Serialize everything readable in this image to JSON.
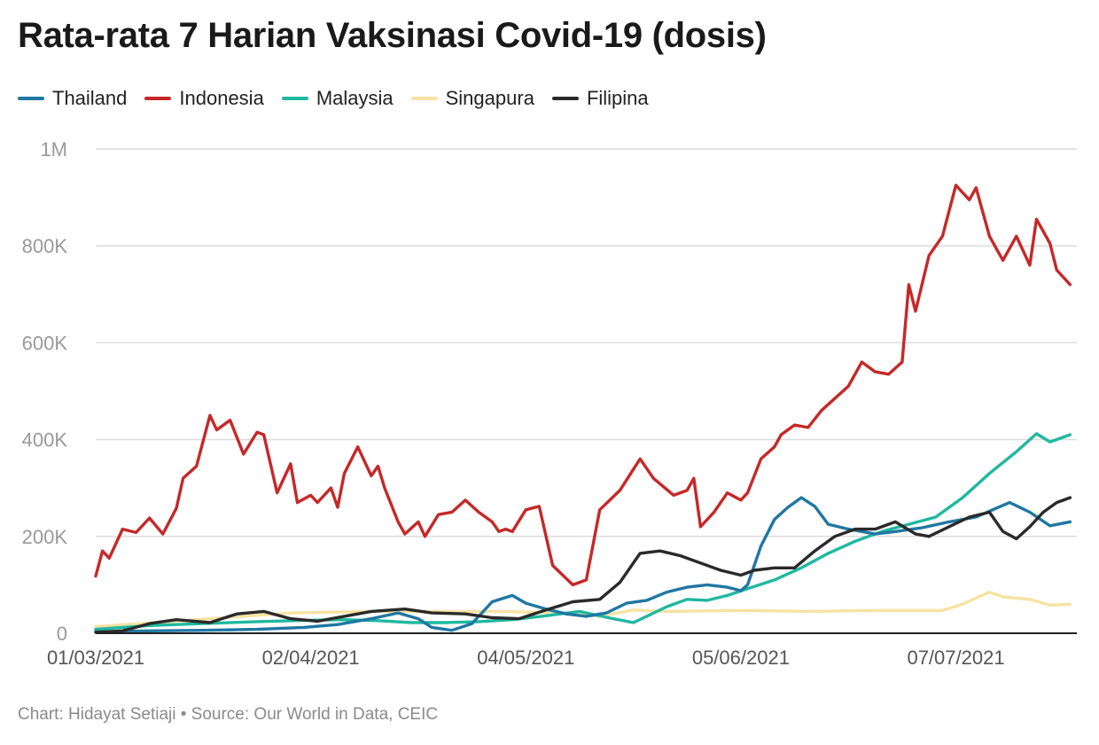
{
  "header": {
    "title": "Rata-rata 7 Harian Vaksinasi Covid-19 (dosis)"
  },
  "footer": {
    "credit": "Chart: Hidayat Setiaji • Source: Our World in Data, CEIC"
  },
  "colors": {
    "Thailand": "#1f77a3",
    "Indonesia": "#c62828",
    "Malaysia": "#1fb8a0",
    "Singapura": "#f6e3a3",
    "Filipina": "#2a2a2a",
    "grid": "#dcdcdc",
    "axis": "#222222",
    "tick_text": "#999999",
    "x_tick_text": "#555555"
  },
  "chart_data": {
    "type": "line",
    "title": "Rata-rata 7 Harian Vaksinasi Covid-19 (dosis)",
    "xlabel": "",
    "ylabel": "",
    "grid": true,
    "legend_position": "top-left",
    "ylim": [
      0,
      1050000
    ],
    "xlim": [
      "2021-03-01",
      "2021-07-25"
    ],
    "x_ticks": [
      {
        "date": "2021-03-01",
        "label": "01/03/2021"
      },
      {
        "date": "2021-04-02",
        "label": "02/04/2021"
      },
      {
        "date": "2021-05-04",
        "label": "04/05/2021"
      },
      {
        "date": "2021-06-05",
        "label": "05/06/2021"
      },
      {
        "date": "2021-07-07",
        "label": "07/07/2021"
      }
    ],
    "y_ticks": [
      {
        "value": 0,
        "label": "0"
      },
      {
        "value": 200000,
        "label": "200K"
      },
      {
        "value": 400000,
        "label": "400K"
      },
      {
        "value": 600000,
        "label": "600K"
      },
      {
        "value": 800000,
        "label": "800K"
      },
      {
        "value": 1000000,
        "label": "1M"
      }
    ],
    "series": [
      {
        "name": "Thailand",
        "x": [
          "2021-03-01",
          "2021-03-09",
          "2021-03-17",
          "2021-03-25",
          "2021-04-01",
          "2021-04-06",
          "2021-04-11",
          "2021-04-15",
          "2021-04-18",
          "2021-04-20",
          "2021-04-23",
          "2021-04-26",
          "2021-04-29",
          "2021-05-02",
          "2021-05-04",
          "2021-05-07",
          "2021-05-10",
          "2021-05-13",
          "2021-05-16",
          "2021-05-19",
          "2021-05-22",
          "2021-05-25",
          "2021-05-28",
          "2021-05-31",
          "2021-06-03",
          "2021-06-05",
          "2021-06-06",
          "2021-06-08",
          "2021-06-10",
          "2021-06-12",
          "2021-06-14",
          "2021-06-16",
          "2021-06-18",
          "2021-06-21",
          "2021-06-25",
          "2021-06-28",
          "2021-07-02",
          "2021-07-06",
          "2021-07-10",
          "2021-07-13",
          "2021-07-15",
          "2021-07-18",
          "2021-07-21",
          "2021-07-24"
        ],
        "y": [
          3000,
          5000,
          6000,
          8000,
          12000,
          18000,
          30000,
          42000,
          30000,
          12000,
          6000,
          20000,
          65000,
          78000,
          62000,
          50000,
          40000,
          35000,
          42000,
          62000,
          68000,
          85000,
          95000,
          100000,
          95000,
          88000,
          100000,
          180000,
          235000,
          260000,
          280000,
          262000,
          225000,
          215000,
          205000,
          210000,
          218000,
          230000,
          240000,
          258000,
          270000,
          250000,
          222000,
          230000
        ]
      },
      {
        "name": "Indonesia",
        "x": [
          "2021-03-01",
          "2021-03-02",
          "2021-03-03",
          "2021-03-05",
          "2021-03-07",
          "2021-03-09",
          "2021-03-11",
          "2021-03-13",
          "2021-03-14",
          "2021-03-16",
          "2021-03-18",
          "2021-03-19",
          "2021-03-21",
          "2021-03-23",
          "2021-03-25",
          "2021-03-26",
          "2021-03-28",
          "2021-03-30",
          "2021-03-31",
          "2021-04-02",
          "2021-04-03",
          "2021-04-05",
          "2021-04-06",
          "2021-04-07",
          "2021-04-09",
          "2021-04-10",
          "2021-04-11",
          "2021-04-12",
          "2021-04-13",
          "2021-04-15",
          "2021-04-16",
          "2021-04-18",
          "2021-04-19",
          "2021-04-21",
          "2021-04-23",
          "2021-04-25",
          "2021-04-27",
          "2021-04-29",
          "2021-04-30",
          "2021-05-01",
          "2021-05-02",
          "2021-05-04",
          "2021-05-06",
          "2021-05-08",
          "2021-05-11",
          "2021-05-13",
          "2021-05-15",
          "2021-05-18",
          "2021-05-21",
          "2021-05-23",
          "2021-05-26",
          "2021-05-28",
          "2021-05-29",
          "2021-05-30",
          "2021-06-01",
          "2021-06-03",
          "2021-06-05",
          "2021-06-06",
          "2021-06-08",
          "2021-06-10",
          "2021-06-11",
          "2021-06-13",
          "2021-06-15",
          "2021-06-17",
          "2021-06-19",
          "2021-06-21",
          "2021-06-23",
          "2021-06-25",
          "2021-06-27",
          "2021-06-29",
          "2021-06-30",
          "2021-07-01",
          "2021-07-03",
          "2021-07-05",
          "2021-07-07",
          "2021-07-09",
          "2021-07-10",
          "2021-07-12",
          "2021-07-14",
          "2021-07-16",
          "2021-07-18",
          "2021-07-19",
          "2021-07-21",
          "2021-07-22",
          "2021-07-24"
        ],
        "y": [
          118000,
          170000,
          155000,
          215000,
          208000,
          238000,
          205000,
          258000,
          320000,
          345000,
          450000,
          420000,
          440000,
          370000,
          415000,
          410000,
          290000,
          350000,
          270000,
          285000,
          270000,
          300000,
          260000,
          330000,
          385000,
          355000,
          325000,
          345000,
          300000,
          230000,
          205000,
          230000,
          200000,
          245000,
          250000,
          275000,
          250000,
          230000,
          210000,
          215000,
          210000,
          255000,
          262000,
          140000,
          100000,
          110000,
          255000,
          295000,
          360000,
          320000,
          285000,
          295000,
          320000,
          220000,
          250000,
          290000,
          275000,
          290000,
          360000,
          385000,
          410000,
          430000,
          425000,
          460000,
          485000,
          510000,
          560000,
          540000,
          535000,
          560000,
          720000,
          665000,
          780000,
          820000,
          925000,
          895000,
          920000,
          820000,
          770000,
          820000,
          760000,
          855000,
          805000,
          750000,
          720000
        ]
      },
      {
        "name": "Malaysia",
        "x": [
          "2021-03-01",
          "2021-03-09",
          "2021-03-17",
          "2021-03-25",
          "2021-04-02",
          "2021-04-07",
          "2021-04-12",
          "2021-04-17",
          "2021-04-22",
          "2021-04-27",
          "2021-05-02",
          "2021-05-07",
          "2021-05-12",
          "2021-05-17",
          "2021-05-20",
          "2021-05-22",
          "2021-05-25",
          "2021-05-28",
          "2021-05-31",
          "2021-06-03",
          "2021-06-06",
          "2021-06-10",
          "2021-06-14",
          "2021-06-18",
          "2021-06-22",
          "2021-06-26",
          "2021-06-30",
          "2021-07-04",
          "2021-07-08",
          "2021-07-12",
          "2021-07-16",
          "2021-07-19",
          "2021-07-21",
          "2021-07-22",
          "2021-07-24"
        ],
        "y": [
          8000,
          16000,
          20000,
          24000,
          27000,
          28000,
          26000,
          22000,
          22000,
          24000,
          28000,
          36000,
          45000,
          30000,
          22000,
          35000,
          55000,
          70000,
          68000,
          78000,
          92000,
          110000,
          135000,
          165000,
          190000,
          210000,
          225000,
          240000,
          280000,
          330000,
          375000,
          412000,
          395000,
          400000,
          410000
        ]
      },
      {
        "name": "Singapura",
        "x": [
          "2021-03-01",
          "2021-03-10",
          "2021-03-20",
          "2021-03-30",
          "2021-04-10",
          "2021-04-20",
          "2021-04-30",
          "2021-05-10",
          "2021-05-15",
          "2021-05-20",
          "2021-05-25",
          "2021-06-05",
          "2021-06-15",
          "2021-06-25",
          "2021-07-05",
          "2021-07-08",
          "2021-07-12",
          "2021-07-14",
          "2021-07-18",
          "2021-07-21",
          "2021-07-24"
        ],
        "y": [
          14000,
          22000,
          32000,
          42000,
          45000,
          45000,
          45000,
          42000,
          35000,
          48000,
          45000,
          47000,
          45000,
          47000,
          47000,
          60000,
          85000,
          75000,
          70000,
          58000,
          60000
        ]
      },
      {
        "name": "Filipina",
        "x": [
          "2021-03-01",
          "2021-03-05",
          "2021-03-09",
          "2021-03-13",
          "2021-03-18",
          "2021-03-22",
          "2021-03-26",
          "2021-03-30",
          "2021-04-03",
          "2021-04-07",
          "2021-04-11",
          "2021-04-16",
          "2021-04-20",
          "2021-04-25",
          "2021-04-29",
          "2021-05-03",
          "2021-05-07",
          "2021-05-11",
          "2021-05-15",
          "2021-05-18",
          "2021-05-21",
          "2021-05-24",
          "2021-05-27",
          "2021-05-30",
          "2021-06-02",
          "2021-06-05",
          "2021-06-07",
          "2021-06-10",
          "2021-06-13",
          "2021-06-16",
          "2021-06-19",
          "2021-06-22",
          "2021-06-25",
          "2021-06-28",
          "2021-07-01",
          "2021-07-03",
          "2021-07-06",
          "2021-07-09",
          "2021-07-12",
          "2021-07-14",
          "2021-07-16",
          "2021-07-18",
          "2021-07-20",
          "2021-07-22",
          "2021-07-24"
        ],
        "y": [
          2000,
          5000,
          20000,
          28000,
          22000,
          40000,
          45000,
          30000,
          25000,
          35000,
          45000,
          50000,
          42000,
          40000,
          32000,
          30000,
          48000,
          65000,
          70000,
          105000,
          165000,
          170000,
          160000,
          145000,
          130000,
          120000,
          130000,
          135000,
          135000,
          170000,
          200000,
          215000,
          215000,
          230000,
          205000,
          200000,
          220000,
          240000,
          250000,
          210000,
          195000,
          220000,
          250000,
          270000,
          280000
        ]
      }
    ]
  }
}
